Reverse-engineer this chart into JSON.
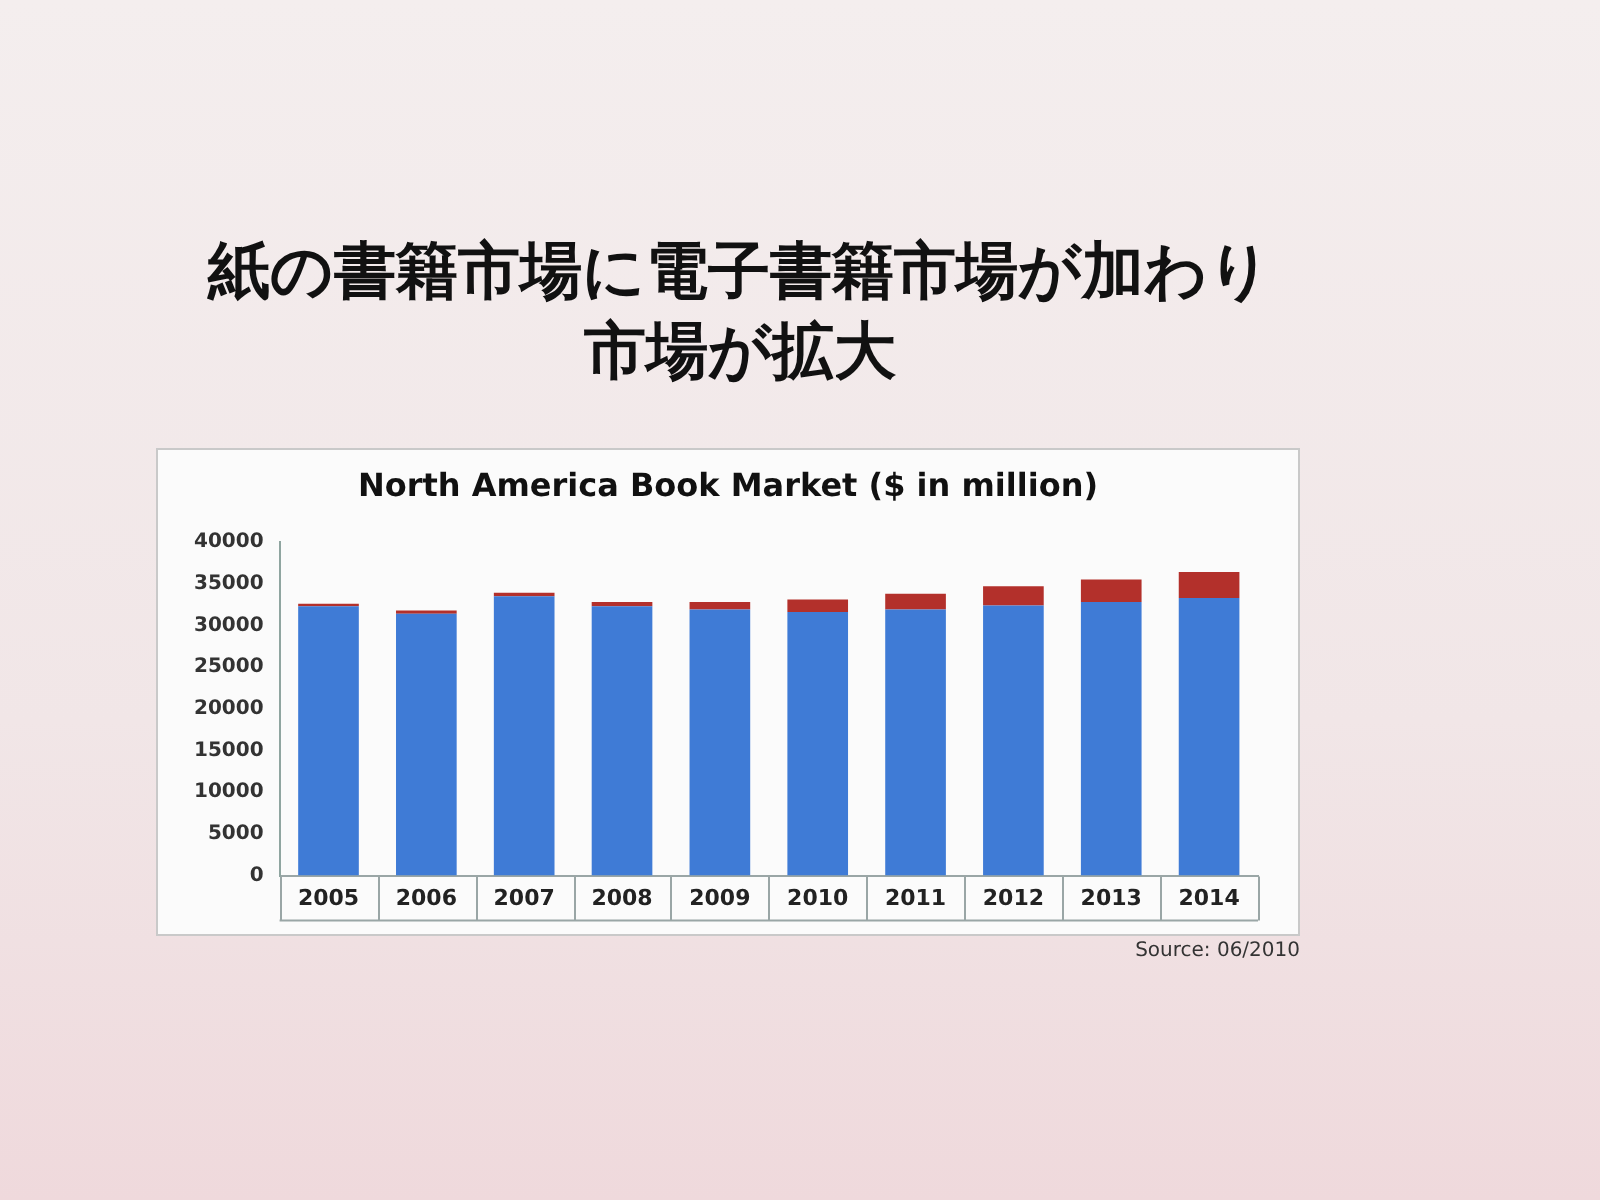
{
  "chart_data": {
    "type": "bar",
    "title": "紙の書籍市場に電子書籍市場が加わり市場が拡大",
    "subtitle": "North America Book Market ($ in million)",
    "categories": [
      "2005",
      "2006",
      "2007",
      "2008",
      "2009",
      "2010",
      "2011",
      "2012",
      "2013",
      "2014"
    ],
    "series": [
      {
        "color": "#3f7bd6",
        "values": [
          32300,
          31400,
          33500,
          32300,
          31900,
          31600,
          31900,
          32400,
          32800,
          33300
        ]
      },
      {
        "color": "#b3302b",
        "values": [
          300,
          400,
          400,
          500,
          900,
          1500,
          1900,
          2300,
          2700,
          3100
        ]
      }
    ],
    "stacked": true,
    "ylim": [
      0,
      40000
    ],
    "yticks": [
      0,
      5000,
      10000,
      15000,
      20000,
      25000,
      30000,
      35000,
      40000
    ],
    "grid": false,
    "legend": false,
    "annotations": [
      "Source: 06/2010"
    ]
  }
}
